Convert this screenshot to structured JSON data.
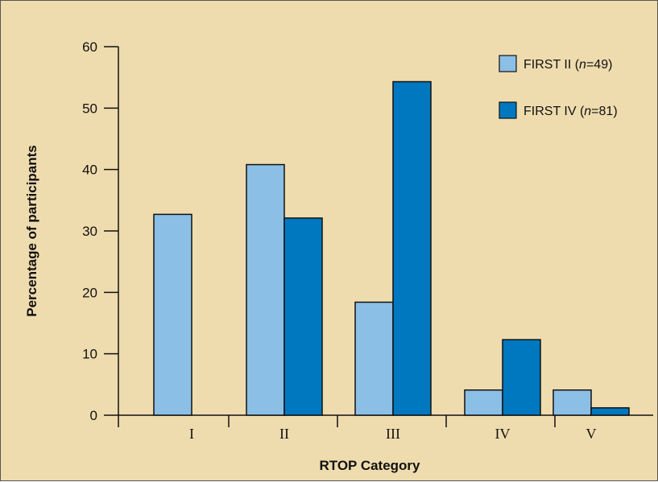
{
  "chart_data": {
    "type": "bar",
    "xlabel": "RTOP Category",
    "ylabel": "Percentage of participants",
    "categories": [
      "I",
      "II",
      "III",
      "IV",
      "V"
    ],
    "ylim": [
      0,
      60
    ],
    "yticks": [
      "0",
      "10",
      "20",
      "30",
      "40",
      "50",
      "60"
    ],
    "series": [
      {
        "name": "FIRST II",
        "n": "49",
        "values": [
          32.7,
          40.8,
          18.4,
          4.1,
          4.1
        ],
        "color": "#8bbfe6"
      },
      {
        "name": "FIRST IV",
        "n": "81",
        "values": [
          0,
          32.1,
          54.3,
          12.3,
          1.2
        ],
        "color": "#0078c0"
      }
    ],
    "legend": [
      {
        "prefix": "FIRST II (",
        "n_label": "n",
        "suffix": "=49)"
      },
      {
        "prefix": "FIRST IV (",
        "n_label": "n",
        "suffix": "=81)"
      }
    ],
    "legend_position": "top-right",
    "grid": false
  }
}
